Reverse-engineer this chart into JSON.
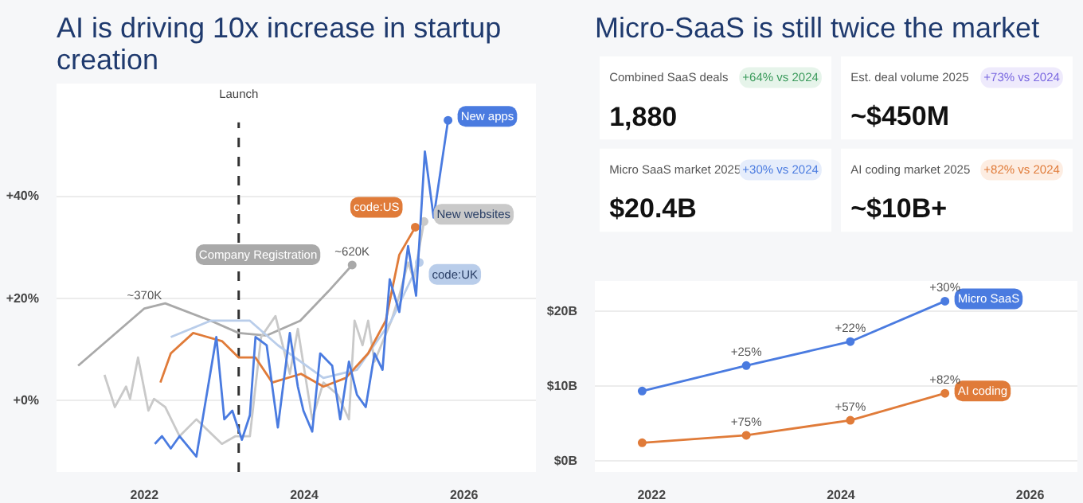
{
  "chart_data": [
    {
      "type": "line",
      "title": "AI is driving 10x increase in startup creation",
      "xlim": [
        2020.9,
        2026.9
      ],
      "ylim": [
        -14,
        62
      ],
      "xticks": [
        2022,
        2024,
        2026
      ],
      "yticks": [
        {
          "value": 0,
          "label": "+0%"
        },
        {
          "value": 20,
          "label": "+20%"
        },
        {
          "value": 40,
          "label": "+40%"
        }
      ],
      "grid": "y",
      "series": [
        {
          "name": "Company Registration",
          "color": "#a9a9a9",
          "x": [
            2021.17,
            2022.0,
            2022.26,
            2022.83,
            2023.18,
            2023.53,
            2023.95,
            2024.3,
            2024.6
          ],
          "values": [
            6.8,
            18,
            19,
            15.6,
            13.2,
            12.7,
            15.6,
            21.3,
            26.5
          ]
        },
        {
          "name": "New websites",
          "color": "#c9c9c9",
          "x": [
            2021.5,
            2021.63,
            2021.77,
            2021.82,
            2021.92,
            2022.05,
            2022.12,
            2022.26,
            2022.44,
            2022.65,
            2022.97,
            2023.14,
            2023.32,
            2023.46,
            2023.64,
            2023.82,
            2023.92,
            2024.1,
            2024.24,
            2024.42,
            2024.56,
            2024.63,
            2024.73,
            2024.8,
            2024.88,
            2025.09,
            2025.19,
            2025.3,
            2025.37,
            2025.5
          ],
          "values": [
            5,
            -1.3,
            2.7,
            0.3,
            8.4,
            -2,
            0.3,
            -1.3,
            -7,
            -3.7,
            -8.5,
            -7,
            -7,
            12.4,
            16.5,
            5.2,
            14,
            -3.7,
            3.5,
            1.1,
            -3.7,
            15.6,
            10.8,
            15.6,
            7.6,
            15.6,
            20.5,
            27,
            23.7,
            35
          ]
        },
        {
          "name": "code:UK",
          "color": "#b9cdea",
          "x": [
            2022.33,
            2022.83,
            2023.32,
            2023.67,
            2024.24,
            2024.66,
            2025.09,
            2025.44
          ],
          "values": [
            12.4,
            15.6,
            15.6,
            10.8,
            4.4,
            6,
            15.6,
            27
          ]
        },
        {
          "name": "code:US",
          "color": "#e07b39",
          "x": [
            2022.2,
            2022.33,
            2022.61,
            2022.97,
            2023.18,
            2023.39,
            2023.6,
            2023.96,
            2024.24,
            2024.52,
            2024.8,
            2025.02,
            2025.19,
            2025.39
          ],
          "values": [
            3.5,
            9.2,
            13.2,
            11.6,
            8.4,
            8.4,
            3.5,
            5.2,
            2.7,
            4.4,
            9.2,
            15.6,
            28.5,
            33.9
          ]
        },
        {
          "name": "New apps",
          "color": "#4a7be0",
          "x": [
            2022.13,
            2022.22,
            2022.33,
            2022.44,
            2022.65,
            2022.9,
            2023.0,
            2023.1,
            2023.22,
            2023.32,
            2023.39,
            2023.53,
            2023.67,
            2023.82,
            2023.92,
            2023.99,
            2024.1,
            2024.2,
            2024.35,
            2024.45,
            2024.56,
            2024.66,
            2024.77,
            2024.88,
            2024.98,
            2025.07,
            2025.19,
            2025.3,
            2025.4,
            2025.51,
            2025.62,
            2025.8
          ],
          "values": [
            -8.5,
            -7,
            -9.4,
            -7,
            -11,
            12.4,
            -3.7,
            -2,
            -7.7,
            -2.9,
            12.4,
            10.8,
            -5.3,
            13.2,
            2.7,
            -2,
            -6.1,
            9.2,
            6.8,
            -3.7,
            7.6,
            1.1,
            -1.3,
            9.2,
            6,
            23.7,
            17.3,
            30.2,
            20.5,
            48.7,
            35.8,
            54.8
          ]
        }
      ],
      "ref_lines": [
        {
          "axis": "x",
          "value": 2023.18,
          "label": "Launch",
          "color": "#333333",
          "line_style": "dashed"
        }
      ],
      "annotations": [
        {
          "text": "~370K",
          "x": 2022,
          "y": 18
        },
        {
          "text": "~620K",
          "x": 2024.6,
          "y": 26.5
        }
      ]
    },
    {
      "type": "other",
      "title": "Micro-SaaS is still twice the market",
      "annotations": [
        "Combined SaaS deals",
        "+64% vs 2024",
        "1,880",
        "Est. deal volume 2025",
        "+73% vs 2024",
        "~$450M",
        "Micro SaaS market 2025",
        "+30% vs 2024",
        "$20.4B",
        "AI coding market 2025",
        "+82% vs 2024",
        "~$10B+"
      ]
    },
    {
      "type": "line",
      "xlim": [
        2021.4,
        2026.5
      ],
      "ylim": [
        -1.5,
        24
      ],
      "xticks": [
        2022,
        2024,
        2026
      ],
      "yticks": [
        {
          "value": 0,
          "label": "$0B"
        },
        {
          "value": 10,
          "label": "$10B"
        },
        {
          "value": 20,
          "label": "$20B"
        }
      ],
      "grid": "y",
      "marker": "circle",
      "series": [
        {
          "name": "Micro SaaS",
          "color": "#4a7be0",
          "x": [
            2021.9,
            2023.0,
            2024.1,
            2025.1
          ],
          "values": [
            9.3,
            12.7,
            15.9,
            21.3
          ]
        },
        {
          "name": "AI coding",
          "color": "#e07b39",
          "x": [
            2021.9,
            2023.0,
            2024.1,
            2025.1
          ],
          "values": [
            2.4,
            3.4,
            5.4,
            9.0
          ]
        }
      ],
      "annotations": [
        {
          "text": "+25%",
          "x": 2023.0,
          "y": 12.7
        },
        {
          "text": "+22%",
          "x": 2024.1,
          "y": 15.9
        },
        {
          "text": "+30%",
          "x": 2025.1,
          "y": 21.3
        },
        {
          "text": "+75%",
          "x": 2023.0,
          "y": 3.4
        },
        {
          "text": "+57%",
          "x": 2024.1,
          "y": 5.4
        },
        {
          "text": "+82%",
          "x": 2025.1,
          "y": 9.0
        }
      ]
    }
  ]
}
